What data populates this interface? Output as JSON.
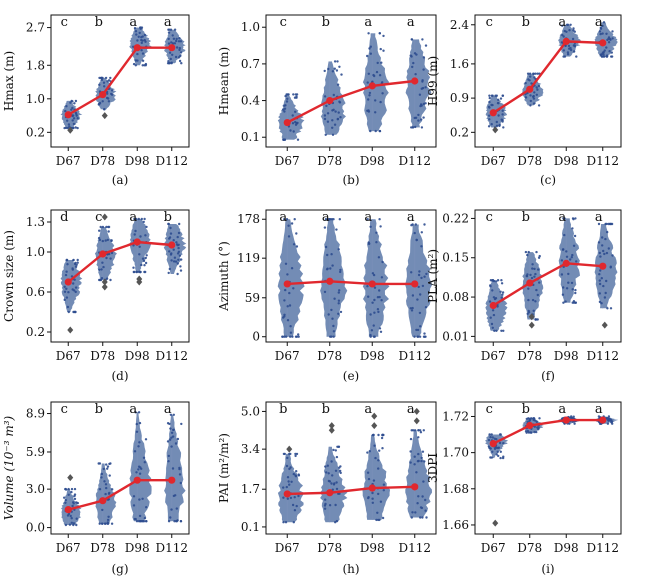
{
  "colors": {
    "violin": "#5b78a8",
    "dots": "#2e4d8f",
    "mean_line": "#e0282e",
    "outlier": "#555555"
  },
  "chart_data": [
    {
      "panel": "(a)",
      "type": "violin",
      "ylabel": "Hmax (m)",
      "categories": [
        "D67",
        "D78",
        "D98",
        "D112"
      ],
      "yticks": [
        "0.2",
        "1.0",
        "1.8",
        "2.7"
      ],
      "ylim": [
        -0.15,
        3.0
      ],
      "means": [
        0.62,
        1.1,
        2.22,
        2.22
      ],
      "medians": [
        0.6,
        1.1,
        2.3,
        2.25
      ],
      "ranges": [
        [
          0.3,
          0.95
        ],
        [
          0.75,
          1.5
        ],
        [
          1.8,
          2.7
        ],
        [
          1.85,
          2.65
        ]
      ],
      "outliers": [
        [
          0.25
        ],
        [
          0.6
        ],
        [],
        []
      ],
      "significance": [
        "c",
        "b",
        "a",
        "a"
      ]
    },
    {
      "panel": "(b)",
      "type": "violin",
      "ylabel": "Hmean (m)",
      "categories": [
        "D67",
        "D78",
        "D98",
        "D112"
      ],
      "yticks": [
        "0.1",
        "0.4",
        "0.7",
        "1.0"
      ],
      "ylim": [
        0.02,
        1.1
      ],
      "means": [
        0.22,
        0.4,
        0.52,
        0.56
      ],
      "medians": [
        0.22,
        0.35,
        0.48,
        0.53
      ],
      "ranges": [
        [
          0.08,
          0.45
        ],
        [
          0.12,
          0.72
        ],
        [
          0.15,
          0.95
        ],
        [
          0.18,
          0.9
        ]
      ],
      "outliers": [
        [],
        [],
        [],
        []
      ],
      "significance": [
        "c",
        "b",
        "a",
        "a"
      ]
    },
    {
      "panel": "(c)",
      "type": "violin",
      "ylabel": "H99 (m)",
      "categories": [
        "D67",
        "D78",
        "D98",
        "D112"
      ],
      "yticks": [
        "0.2",
        "0.9",
        "1.6",
        "2.4"
      ],
      "ylim": [
        -0.1,
        2.6
      ],
      "means": [
        0.6,
        1.08,
        2.06,
        2.03
      ],
      "medians": [
        0.6,
        1.05,
        2.05,
        2.05
      ],
      "ranges": [
        [
          0.3,
          0.95
        ],
        [
          0.75,
          1.4
        ],
        [
          1.75,
          2.4
        ],
        [
          1.75,
          2.45
        ]
      ],
      "outliers": [
        [
          0.25
        ],
        [],
        [],
        []
      ],
      "significance": [
        "c",
        "b",
        "a",
        "a"
      ]
    },
    {
      "panel": "(d)",
      "type": "violin",
      "ylabel": "Crown size (m)",
      "categories": [
        "D67",
        "D78",
        "D98",
        "D112"
      ],
      "yticks": [
        "0.2",
        "0.6",
        "1.0",
        "1.3"
      ],
      "ylim": [
        0.1,
        1.42
      ],
      "means": [
        0.7,
        0.98,
        1.1,
        1.07
      ],
      "medians": [
        0.7,
        0.97,
        1.1,
        1.07
      ],
      "ranges": [
        [
          0.4,
          0.92
        ],
        [
          0.72,
          1.25
        ],
        [
          0.8,
          1.33
        ],
        [
          0.78,
          1.28
        ]
      ],
      "outliers": [
        [
          0.22
        ],
        [
          0.65,
          0.7,
          1.35
        ],
        [
          0.7,
          0.73
        ],
        []
      ],
      "significance": [
        "d",
        "c",
        "a",
        "b"
      ]
    },
    {
      "panel": "(e)",
      "type": "violin",
      "ylabel": "Azimuth (°)",
      "categories": [
        "D67",
        "D78",
        "D98",
        "D112"
      ],
      "yticks": [
        "0",
        "59",
        "119",
        "178"
      ],
      "ylim": [
        -8,
        192
      ],
      "means": [
        80,
        84,
        80,
        80
      ],
      "medians": [
        78,
        82,
        78,
        80
      ],
      "ranges": [
        [
          0,
          178
        ],
        [
          0,
          178
        ],
        [
          0,
          178
        ],
        [
          0,
          170
        ]
      ],
      "outliers": [
        [],
        [],
        [],
        []
      ],
      "significance": [
        "a",
        "a",
        "a",
        "a"
      ]
    },
    {
      "panel": "(f)",
      "type": "violin",
      "ylabel": "PLA (m²)",
      "categories": [
        "D67",
        "D78",
        "D98",
        "D112"
      ],
      "yticks": [
        "0.01",
        "0.08",
        "0.15",
        "0.22"
      ],
      "ylim": [
        0.0,
        0.235
      ],
      "means": [
        0.065,
        0.105,
        0.14,
        0.135
      ],
      "medians": [
        0.06,
        0.1,
        0.14,
        0.13
      ],
      "ranges": [
        [
          0.02,
          0.11
        ],
        [
          0.04,
          0.16
        ],
        [
          0.07,
          0.22
        ],
        [
          0.06,
          0.21
        ]
      ],
      "outliers": [
        [],
        [
          0.03,
          0.045
        ],
        [],
        [
          0.03
        ]
      ],
      "significance": [
        "c",
        "b",
        "a",
        "a"
      ]
    },
    {
      "panel": "(g)",
      "type": "violin",
      "ylabel": "Volume (10⁻³ m³)",
      "categories": [
        "D67",
        "D78",
        "D98",
        "D112"
      ],
      "yticks": [
        "0.0",
        "3.0",
        "5.9",
        "8.9"
      ],
      "ylim": [
        -0.5,
        9.8
      ],
      "means": [
        1.4,
        2.1,
        3.7,
        3.7
      ],
      "medians": [
        1.2,
        2.0,
        3.4,
        3.5
      ],
      "ranges": [
        [
          0.2,
          3.0
        ],
        [
          0.3,
          5.0
        ],
        [
          0.5,
          9.0
        ],
        [
          0.5,
          8.8
        ]
      ],
      "outliers": [
        [
          3.9
        ],
        [],
        [],
        []
      ],
      "significance": [
        "c",
        "b",
        "a",
        "a"
      ]
    },
    {
      "panel": "(h)",
      "type": "violin",
      "ylabel": "PAI (m²/m²)",
      "categories": [
        "D67",
        "D78",
        "D98",
        "D112"
      ],
      "yticks": [
        "0.1",
        "1.7",
        "3.4",
        "5.0"
      ],
      "ylim": [
        -0.2,
        5.4
      ],
      "means": [
        1.5,
        1.55,
        1.75,
        1.8
      ],
      "medians": [
        1.4,
        1.5,
        1.7,
        1.75
      ],
      "ranges": [
        [
          0.3,
          3.2
        ],
        [
          0.3,
          3.5
        ],
        [
          0.4,
          4.0
        ],
        [
          0.5,
          4.2
        ]
      ],
      "outliers": [
        [
          3.4
        ],
        [
          4.2,
          4.4
        ],
        [
          4.4,
          4.8
        ],
        [
          4.6,
          5.0
        ]
      ],
      "significance": [
        "b",
        "b",
        "a",
        "a"
      ]
    },
    {
      "panel": "(i)",
      "type": "violin",
      "ylabel": "3DPI",
      "categories": [
        "D67",
        "D78",
        "D98",
        "D112"
      ],
      "yticks": [
        "1.66",
        "1.68",
        "1.70",
        "1.72"
      ],
      "ylim": [
        1.655,
        1.728
      ],
      "means": [
        1.705,
        1.715,
        1.718,
        1.718
      ],
      "medians": [
        1.706,
        1.715,
        1.718,
        1.718
      ],
      "ranges": [
        [
          1.697,
          1.71
        ],
        [
          1.711,
          1.719
        ],
        [
          1.716,
          1.72
        ],
        [
          1.716,
          1.72
        ]
      ],
      "outliers": [
        [
          1.661
        ],
        [],
        [],
        []
      ],
      "significance": [
        "c",
        "b",
        "a",
        "a"
      ]
    }
  ]
}
